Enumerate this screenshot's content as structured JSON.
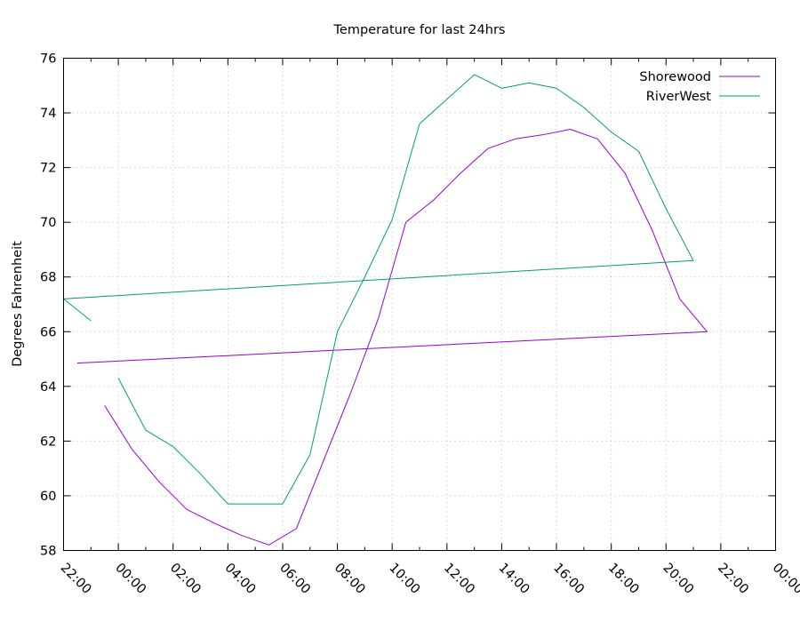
{
  "chart_data": {
    "type": "line",
    "title": "Temperature for last 24hrs",
    "xlabel": "",
    "ylabel": "Degrees Fahrenheit",
    "ylim": [
      58,
      76
    ],
    "y_ticks": [
      "58",
      "60",
      "62",
      "64",
      "66",
      "68",
      "70",
      "72",
      "74",
      "76"
    ],
    "xlim": [
      "22:00",
      "00:00"
    ],
    "x_ticks": [
      "22:00",
      "00:00",
      "02:00",
      "04:00",
      "06:00",
      "08:00",
      "10:00",
      "12:00",
      "14:00",
      "16:00",
      "18:00",
      "20:00",
      "22:00",
      "00:00"
    ],
    "grid": true,
    "legend_position": "top-right",
    "series": [
      {
        "name": "Shorewood",
        "color": "#9400d3",
        "points": [
          {
            "t": "23:30",
            "y": 63.3
          },
          {
            "t": "00:30",
            "y": 61.7
          },
          {
            "t": "01:30",
            "y": 60.5
          },
          {
            "t": "02:30",
            "y": 59.5
          },
          {
            "t": "03:30",
            "y": 59.0
          },
          {
            "t": "04:30",
            "y": 58.55
          },
          {
            "t": "05:30",
            "y": 58.2
          },
          {
            "t": "06:30",
            "y": 58.8
          },
          {
            "t": "07:30",
            "y": 61.3
          },
          {
            "t": "08:30",
            "y": 63.8
          },
          {
            "t": "09:30",
            "y": 66.5
          },
          {
            "t": "10:30",
            "y": 70.0
          },
          {
            "t": "11:30",
            "y": 70.8
          },
          {
            "t": "12:30",
            "y": 71.8
          },
          {
            "t": "13:30",
            "y": 72.7
          },
          {
            "t": "14:30",
            "y": 73.05
          },
          {
            "t": "15:30",
            "y": 73.2
          },
          {
            "t": "16:30",
            "y": 73.4
          },
          {
            "t": "17:30",
            "y": 73.05
          },
          {
            "t": "18:30",
            "y": 71.8
          },
          {
            "t": "19:30",
            "y": 69.7
          },
          {
            "t": "20:30",
            "y": 67.2
          },
          {
            "t": "21:30",
            "y": 66.0
          },
          {
            "t": "22:30",
            "y": 64.85
          }
        ]
      },
      {
        "name": "RiverWest",
        "color": "#009e73",
        "points": [
          {
            "t": "00:00",
            "y": 64.3
          },
          {
            "t": "01:00",
            "y": 62.4
          },
          {
            "t": "02:00",
            "y": 61.8
          },
          {
            "t": "03:00",
            "y": 60.8
          },
          {
            "t": "04:00",
            "y": 59.7
          },
          {
            "t": "05:00",
            "y": 59.7
          },
          {
            "t": "06:00",
            "y": 59.7
          },
          {
            "t": "07:00",
            "y": 61.5
          },
          {
            "t": "08:00",
            "y": 66.0
          },
          {
            "t": "09:00",
            "y": 68.0
          },
          {
            "t": "10:00",
            "y": 70.1
          },
          {
            "t": "11:00",
            "y": 73.6
          },
          {
            "t": "12:00",
            "y": 74.5
          },
          {
            "t": "13:00",
            "y": 75.4
          },
          {
            "t": "14:00",
            "y": 74.9
          },
          {
            "t": "15:00",
            "y": 75.1
          },
          {
            "t": "16:00",
            "y": 74.9
          },
          {
            "t": "17:00",
            "y": 74.2
          },
          {
            "t": "18:00",
            "y": 73.3
          },
          {
            "t": "19:00",
            "y": 72.6
          },
          {
            "t": "20:00",
            "y": 70.5
          },
          {
            "t": "21:00",
            "y": 68.6
          },
          {
            "t": "22:00",
            "y": 67.2
          },
          {
            "t": "23:00",
            "y": 66.4
          }
        ]
      }
    ]
  }
}
